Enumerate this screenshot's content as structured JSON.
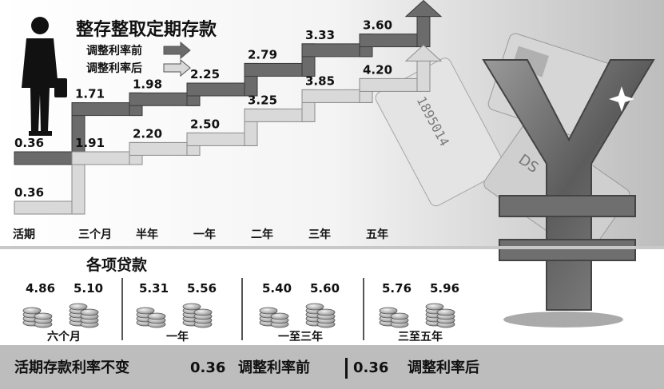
{
  "chart_data": [
    {
      "type": "line",
      "title": "整存整取定期存款",
      "categories": [
        "活期",
        "三个月",
        "半年",
        "一年",
        "二年",
        "三年",
        "五年"
      ],
      "series": [
        {
          "name": "调整利率前",
          "values": [
            0.36,
            1.71,
            1.98,
            2.25,
            2.79,
            3.33,
            3.6
          ],
          "color": "#6b6b6b"
        },
        {
          "name": "调整利率后",
          "values": [
            0.36,
            1.91,
            2.2,
            2.5,
            3.25,
            3.85,
            4.2
          ],
          "color": "#d9d9d9"
        }
      ],
      "value_labels": {
        "before": [
          "0.36",
          "1.71",
          "1.98",
          "2.25",
          "2.79",
          "3.33",
          "3.60"
        ],
        "after": [
          "0.36",
          "1.91",
          "2.20",
          "2.50",
          "3.25",
          "3.85",
          "4.20"
        ]
      }
    },
    {
      "type": "bar",
      "title": "各项贷款",
      "categories": [
        "六个月",
        "一年",
        "一至三年",
        "三至五年"
      ],
      "series": [
        {
          "name": "调整利率前",
          "values": [
            4.86,
            5.31,
            5.4,
            5.76
          ]
        },
        {
          "name": "调整利率后",
          "values": [
            5.1,
            5.56,
            5.6,
            5.96
          ]
        }
      ],
      "value_labels": {
        "before": [
          "4.86",
          "5.31",
          "5.40",
          "5.76"
        ],
        "after": [
          "5.10",
          "5.56",
          "5.60",
          "5.96"
        ]
      }
    }
  ],
  "footer": {
    "note": "活期存款利率不变",
    "before_value": "0.36",
    "before_label": "调整利率前",
    "after_value": "0.36",
    "after_label": "调整利率后"
  },
  "decor": {
    "card_text_1": "1895014",
    "card_text_2": "DS"
  },
  "colors": {
    "before": "#6b6b6b",
    "after": "#d9d9d9",
    "footer_bg": "#bdbdbd",
    "yen": "#7a7a7a"
  }
}
